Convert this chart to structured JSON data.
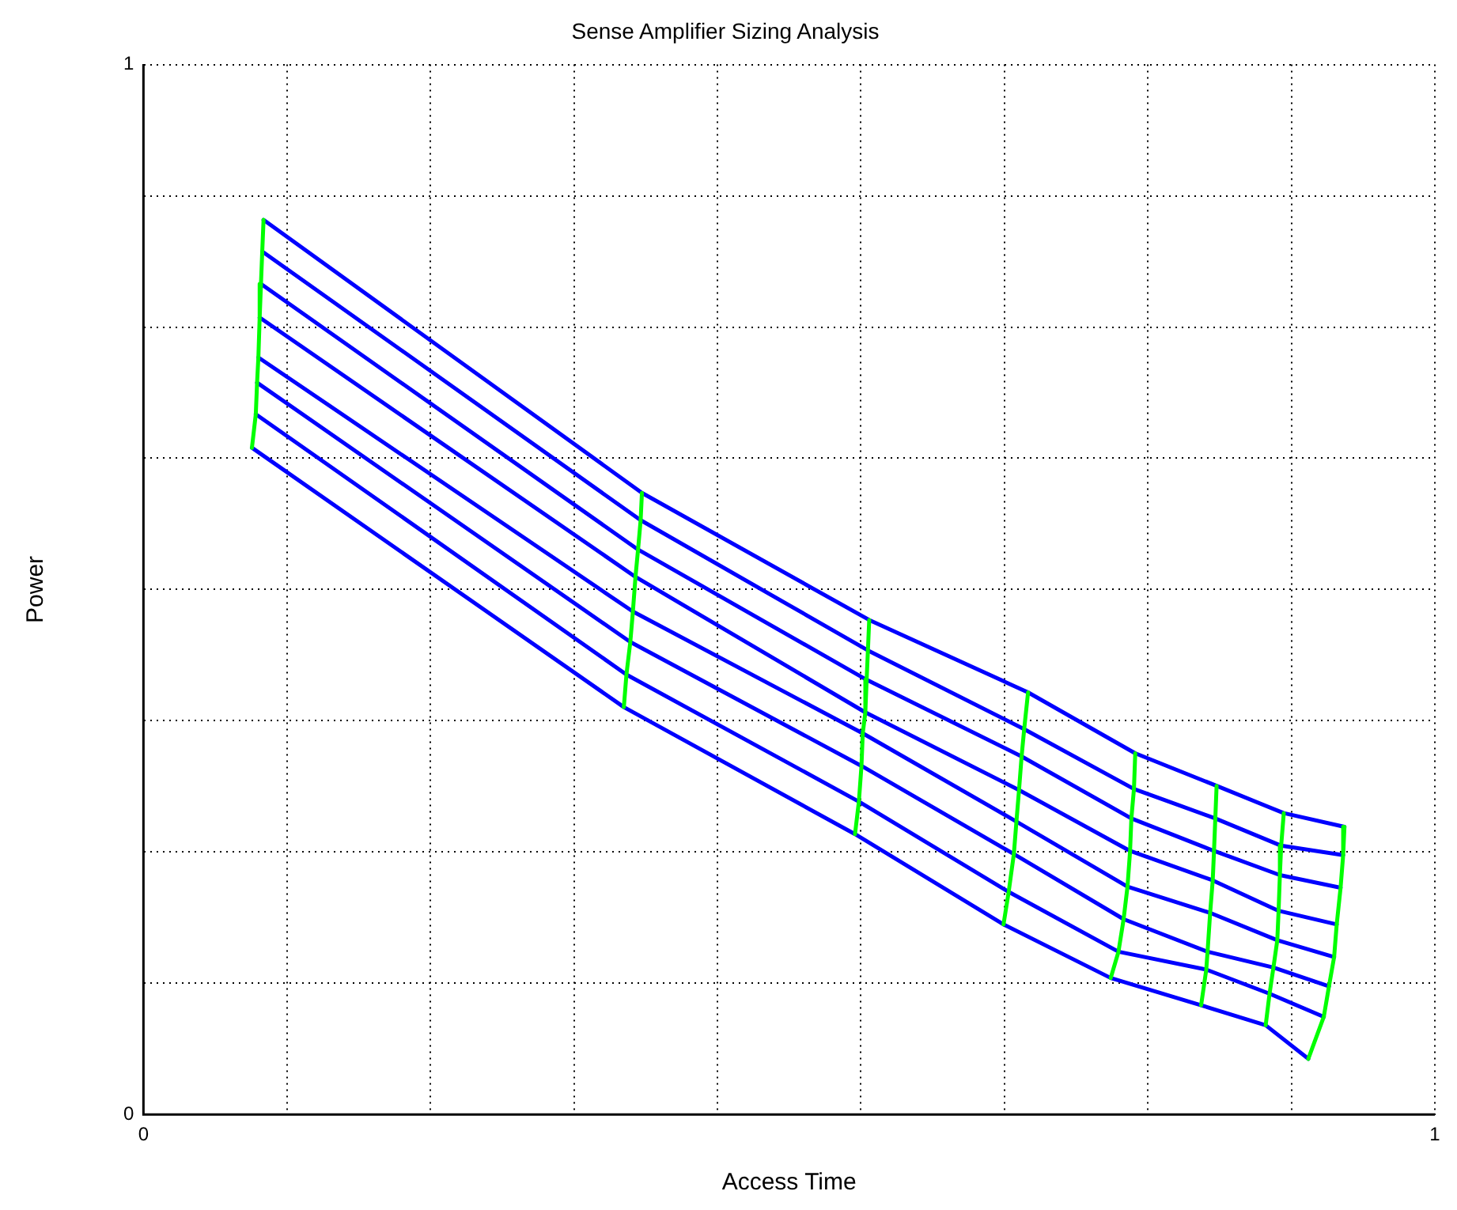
{
  "chart_data": {
    "type": "line",
    "title": "Sense Amplifier Sizing Analysis",
    "xlabel": "Access Time",
    "ylabel": "Power",
    "xlim": [
      0,
      1
    ],
    "ylim": [
      0,
      1
    ],
    "xticks": [
      0,
      {
        "value": 0.1111,
        "label": null
      },
      {
        "value": 0.2222,
        "label": null
      },
      {
        "value": 0.3333,
        "label": null
      },
      {
        "value": 0.4444,
        "label": null
      },
      {
        "value": 0.5556,
        "label": null
      },
      {
        "value": 0.6667,
        "label": null
      },
      {
        "value": 0.7778,
        "label": null
      },
      {
        "value": 0.8889,
        "label": null
      },
      1
    ],
    "yticks": [
      0,
      {
        "value": 0.125,
        "label": null
      },
      {
        "value": 0.25,
        "label": null
      },
      {
        "value": 0.375,
        "label": null
      },
      {
        "value": 0.5,
        "label": null
      },
      {
        "value": 0.625,
        "label": null
      },
      {
        "value": 0.75,
        "label": null
      },
      {
        "value": 0.875,
        "label": null
      },
      1
    ],
    "grid": true,
    "legend": false,
    "marker": "none",
    "line_style": "solid",
    "series": [
      {
        "color": "#0000ff",
        "x": [
          0.093,
          0.386,
          0.562,
          0.685,
          0.768,
          0.831,
          0.883,
          0.93
        ],
        "values": [
          0.852,
          0.592,
          0.471,
          0.402,
          0.344,
          0.313,
          0.287,
          0.274
        ]
      },
      {
        "color": "#0000ff",
        "x": [
          0.092,
          0.385,
          0.561,
          0.682,
          0.767,
          0.83,
          0.881,
          0.929
        ],
        "values": [
          0.822,
          0.566,
          0.442,
          0.367,
          0.31,
          0.282,
          0.256,
          0.247
        ]
      },
      {
        "color": "#0000ff",
        "x": [
          0.091,
          0.383,
          0.56,
          0.68,
          0.765,
          0.829,
          0.88,
          0.927
        ],
        "values": [
          0.791,
          0.538,
          0.414,
          0.341,
          0.282,
          0.251,
          0.228,
          0.216
        ]
      },
      {
        "color": "#0000ff",
        "x": [
          0.09,
          0.381,
          0.559,
          0.678,
          0.764,
          0.828,
          0.879,
          0.924
        ],
        "values": [
          0.759,
          0.512,
          0.383,
          0.309,
          0.251,
          0.223,
          0.194,
          0.181
        ]
      },
      {
        "color": "#0000ff",
        "x": [
          0.089,
          0.379,
          0.557,
          0.676,
          0.762,
          0.826,
          0.878,
          0.922
        ],
        "values": [
          0.721,
          0.479,
          0.363,
          0.279,
          0.217,
          0.192,
          0.166,
          0.15
        ]
      },
      {
        "color": "#0000ff",
        "x": [
          0.088,
          0.377,
          0.556,
          0.674,
          0.759,
          0.824,
          0.875,
          0.918
        ],
        "values": [
          0.697,
          0.45,
          0.332,
          0.248,
          0.186,
          0.155,
          0.14,
          0.122
        ]
      },
      {
        "color": "#0000ff",
        "x": [
          0.087,
          0.374,
          0.554,
          0.67,
          0.755,
          0.823,
          0.872,
          0.914
        ],
        "values": [
          0.667,
          0.419,
          0.298,
          0.212,
          0.155,
          0.138,
          0.115,
          0.093
        ]
      },
      {
        "color": "#0000ff",
        "x": [
          0.084,
          0.372,
          0.551,
          0.666,
          0.749,
          0.819,
          0.869,
          0.902
        ],
        "values": [
          0.635,
          0.388,
          0.267,
          0.181,
          0.13,
          0.104,
          0.085,
          0.053
        ]
      },
      {
        "color": "#00ff00",
        "x": [
          0.093,
          0.092,
          0.091,
          0.09,
          0.089,
          0.088,
          0.087,
          0.084
        ],
        "values": [
          0.852,
          0.822,
          0.791,
          0.759,
          0.721,
          0.697,
          0.667,
          0.635
        ]
      },
      {
        "color": "#00ff00",
        "x": [
          0.386,
          0.385,
          0.383,
          0.381,
          0.379,
          0.377,
          0.374,
          0.372
        ],
        "values": [
          0.592,
          0.566,
          0.538,
          0.512,
          0.479,
          0.45,
          0.419,
          0.388
        ]
      },
      {
        "color": "#00ff00",
        "x": [
          0.562,
          0.561,
          0.56,
          0.559,
          0.557,
          0.556,
          0.554,
          0.551
        ],
        "values": [
          0.471,
          0.442,
          0.414,
          0.383,
          0.363,
          0.332,
          0.298,
          0.267
        ]
      },
      {
        "color": "#00ff00",
        "x": [
          0.685,
          0.682,
          0.68,
          0.678,
          0.676,
          0.674,
          0.67,
          0.666
        ],
        "values": [
          0.402,
          0.367,
          0.341,
          0.309,
          0.279,
          0.248,
          0.212,
          0.181
        ]
      },
      {
        "color": "#00ff00",
        "x": [
          0.768,
          0.767,
          0.765,
          0.764,
          0.762,
          0.759,
          0.755,
          0.749
        ],
        "values": [
          0.344,
          0.31,
          0.282,
          0.251,
          0.217,
          0.186,
          0.155,
          0.13
        ]
      },
      {
        "color": "#00ff00",
        "x": [
          0.831,
          0.83,
          0.829,
          0.828,
          0.826,
          0.824,
          0.823,
          0.819
        ],
        "values": [
          0.313,
          0.282,
          0.251,
          0.223,
          0.192,
          0.155,
          0.138,
          0.104
        ]
      },
      {
        "color": "#00ff00",
        "x": [
          0.883,
          0.881,
          0.88,
          0.879,
          0.878,
          0.875,
          0.872,
          0.869
        ],
        "values": [
          0.287,
          0.256,
          0.228,
          0.194,
          0.166,
          0.14,
          0.115,
          0.085
        ]
      },
      {
        "color": "#00ff00",
        "x": [
          0.93,
          0.929,
          0.927,
          0.924,
          0.922,
          0.918,
          0.914,
          0.902
        ],
        "values": [
          0.274,
          0.247,
          0.216,
          0.181,
          0.15,
          0.122,
          0.093,
          0.053
        ]
      }
    ]
  }
}
